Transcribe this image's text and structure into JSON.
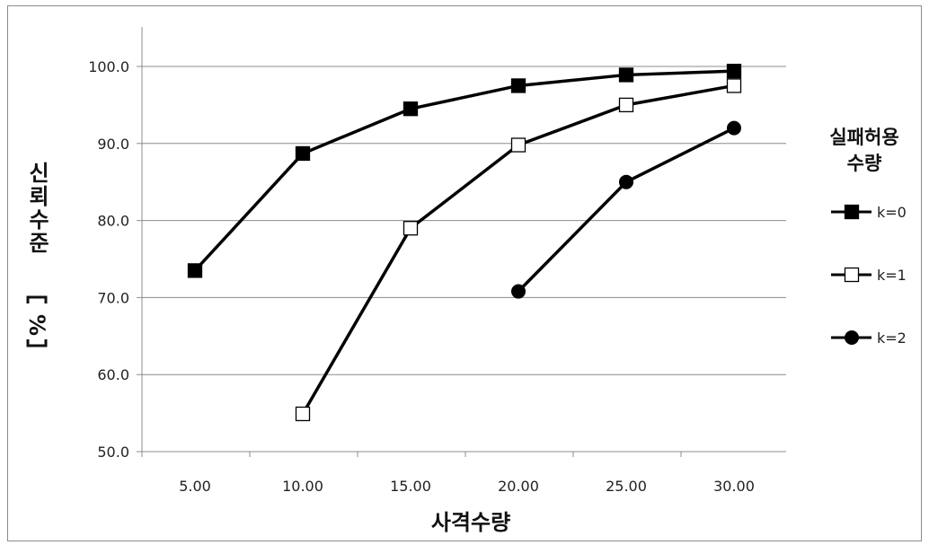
{
  "chart_data": {
    "type": "line",
    "xlabel": "사격수량",
    "ylabel": "신뢰수준",
    "ylabel_unit": "%",
    "x": [
      5,
      10,
      15,
      20,
      25,
      30
    ],
    "x_tick_labels": [
      "5.00",
      "10.00",
      "15.00",
      "20.00",
      "25.00",
      "30.00"
    ],
    "ylim": [
      50,
      100
    ],
    "y_tick_values": [
      50,
      60,
      70,
      80,
      90,
      100
    ],
    "y_tick_labels": [
      "50.0",
      "60.0",
      "70.0",
      "80.0",
      "90.0",
      "100.0"
    ],
    "grid": "horizontal",
    "legend": {
      "title_lines": [
        "실패허용",
        "수량"
      ],
      "placement": "right"
    },
    "series": [
      {
        "name": "k=0",
        "marker": "filled-square",
        "color": "#000000",
        "x": [
          5,
          10,
          15,
          20,
          25,
          30
        ],
        "values": [
          73.5,
          88.7,
          94.5,
          97.5,
          98.9,
          99.4
        ]
      },
      {
        "name": "k=1",
        "marker": "open-square",
        "color": "#000000",
        "x": [
          10,
          15,
          20,
          25,
          30
        ],
        "values": [
          54.9,
          79.0,
          89.8,
          95.0,
          97.5
        ]
      },
      {
        "name": "k=2",
        "marker": "filled-circle",
        "color": "#000000",
        "x": [
          20,
          25,
          30
        ],
        "values": [
          70.8,
          85.0,
          92.0
        ]
      }
    ]
  }
}
